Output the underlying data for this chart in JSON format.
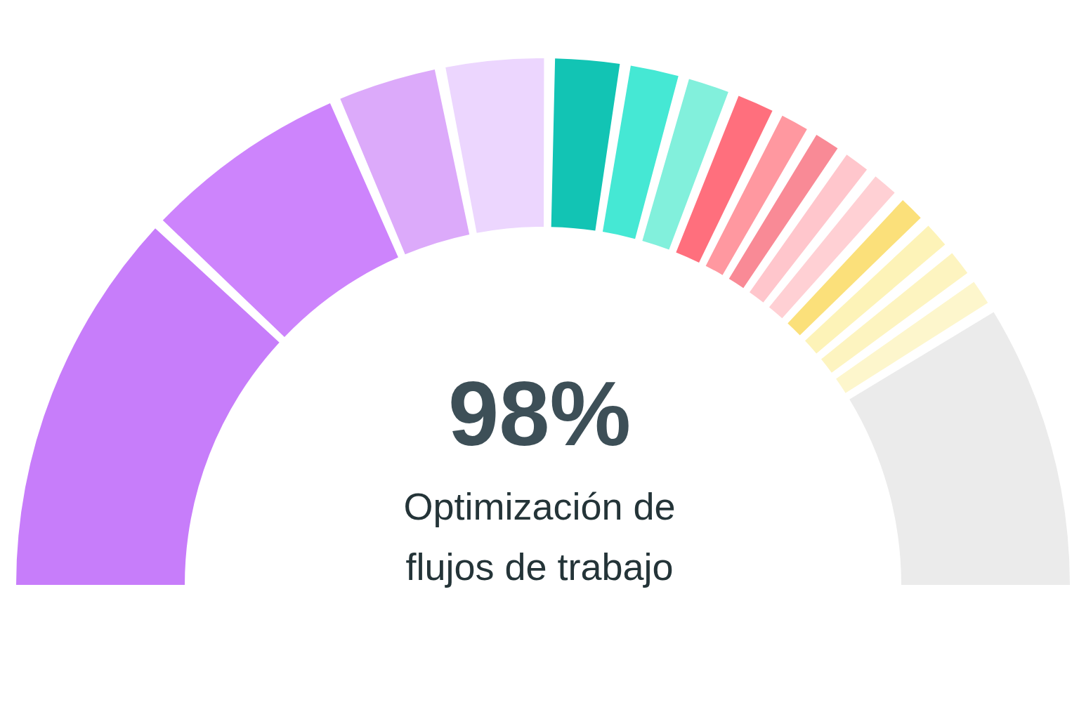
{
  "chart_data": {
    "type": "donut",
    "title": "98%",
    "subtitle": "Optimización de flujos de trabajo",
    "categories": [
      null,
      null,
      null,
      null,
      null,
      null,
      null,
      null,
      null,
      null,
      null,
      null,
      null,
      null,
      null,
      null,
      null
    ],
    "values": [
      26.5,
      13.9,
      6.7,
      6.7,
      4.4,
      3.3,
      2.8,
      2.5,
      1.9,
      1.7,
      1.7,
      1.7,
      1.7,
      1.7,
      1.7,
      1.7,
      19.4
    ],
    "colors": [
      "#c77dfa",
      "#cd84fc",
      "#dcaafa",
      "#ecd6fe",
      "#12c4b4",
      "#45e8d4",
      "#82f0dc",
      "#ff6f7d",
      "#ff98a0",
      "#f98a96",
      "#ffc6cc",
      "#ffd0d4",
      "#fbe07a",
      "#fdf3b8",
      "#fdf4c0",
      "#fdf6cc",
      "#ebebeb"
    ]
  }
}
